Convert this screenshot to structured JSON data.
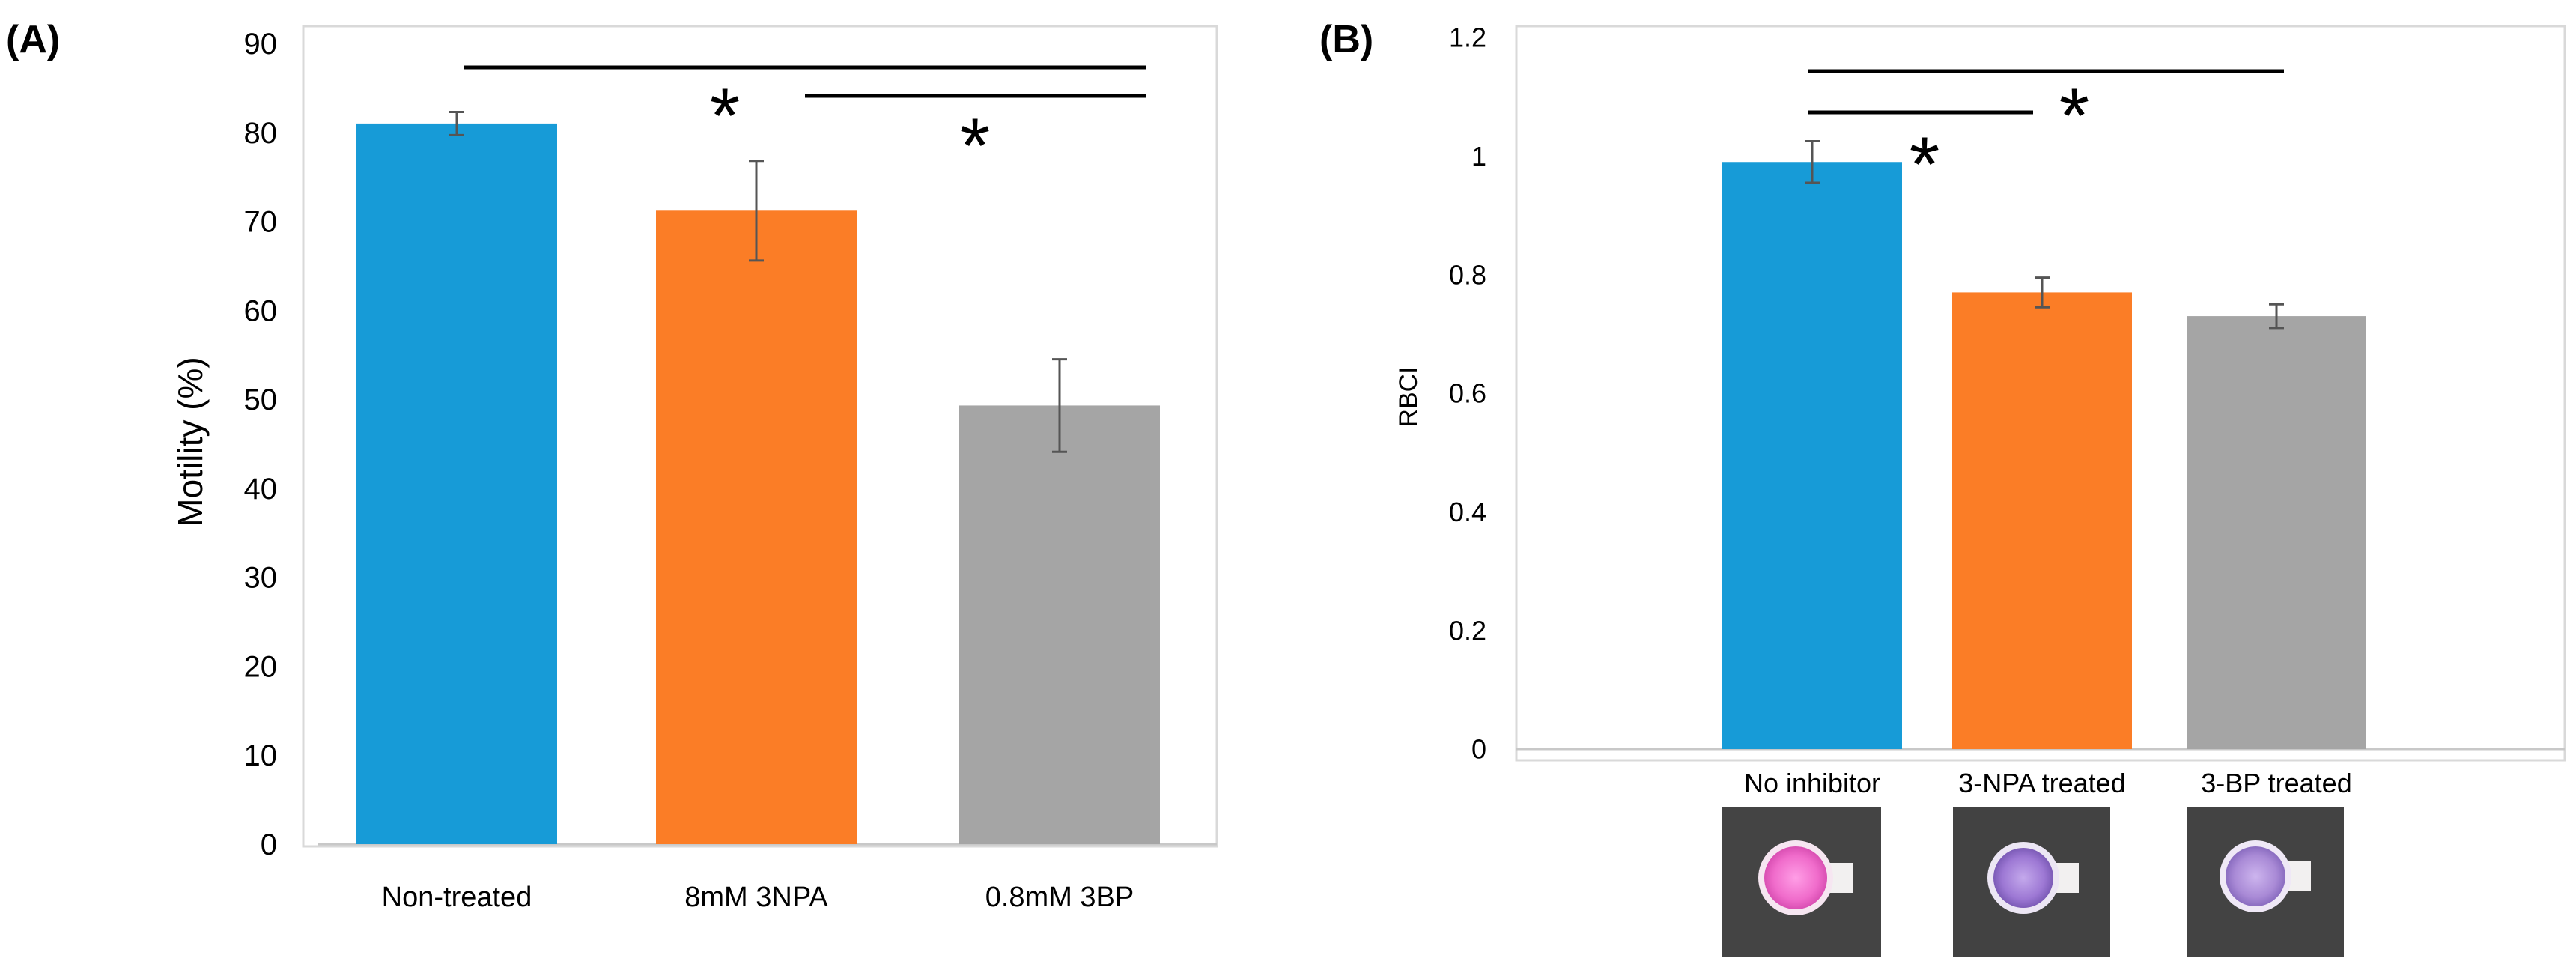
{
  "panels": {
    "a_label": "(A)",
    "b_label": "(B)"
  },
  "chart_data": [
    {
      "type": "bar",
      "panel": "(A)",
      "title": "",
      "xlabel": "",
      "ylabel": "Motility (%)",
      "ylim": [
        0,
        90
      ],
      "yticks": [
        0,
        10,
        20,
        30,
        40,
        50,
        60,
        70,
        80,
        90
      ],
      "categories": [
        "Non-treated",
        "8mM 3NPA",
        "0.8mM 3BP"
      ],
      "values": [
        81,
        71.2,
        49.3
      ],
      "errors": [
        1.3,
        5.6,
        5.2
      ],
      "colors": [
        "#179bd7",
        "#fb7d26",
        "#a5a5a5"
      ],
      "grid": false,
      "annotations": [
        {
          "text": "*",
          "from": 0,
          "to": 2
        },
        {
          "text": "*",
          "from": 1,
          "to": 2
        }
      ]
    },
    {
      "type": "bar",
      "panel": "(B)",
      "title": "",
      "xlabel": "",
      "ylabel": "RBCI",
      "ylim": [
        0,
        1.2
      ],
      "yticks": [
        "0",
        "0.2",
        "0.4",
        "0.6",
        "0.8",
        "1",
        "1.2"
      ],
      "categories": [
        "No inhibitor",
        "3-NPA treated",
        "3-BP treated"
      ],
      "values": [
        0.99,
        0.77,
        0.73
      ],
      "errors": [
        0.035,
        0.025,
        0.02
      ],
      "colors": [
        "#179bd7",
        "#fb7d26",
        "#a5a5a5"
      ],
      "grid": false,
      "annotations": [
        {
          "text": "*",
          "from": 0,
          "to": 1
        },
        {
          "text": "*",
          "from": 0,
          "to": 2
        }
      ],
      "well_images": [
        {
          "name": "pink well",
          "color": "#f57ad0"
        },
        {
          "name": "purple well",
          "color": "#a37ed6"
        },
        {
          "name": "purple well",
          "color": "#a98ad6"
        }
      ]
    }
  ]
}
